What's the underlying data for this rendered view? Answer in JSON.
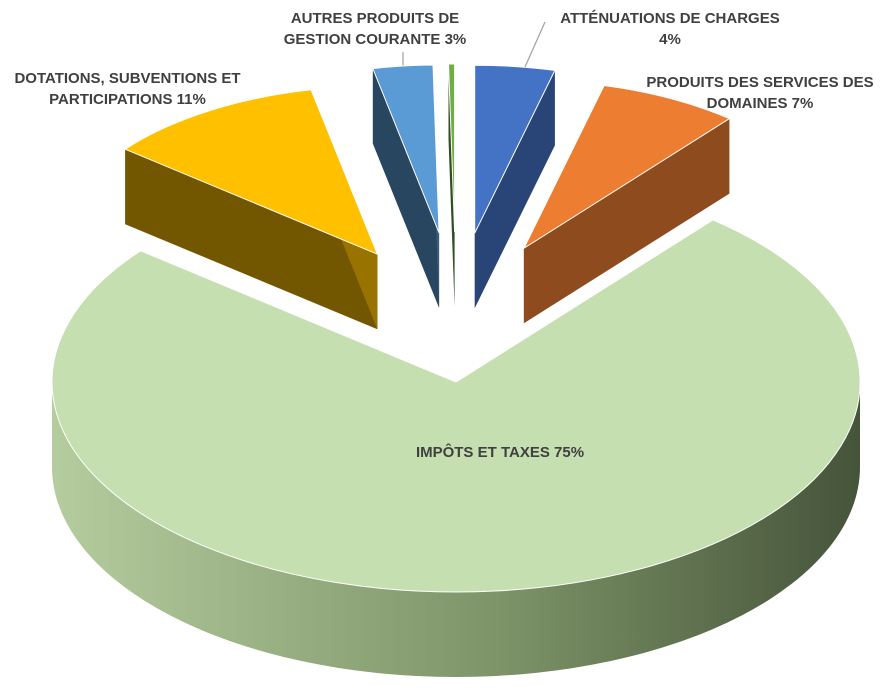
{
  "chart_data": {
    "type": "pie3d",
    "categories": [
      "ATTÉNUATIONS DE CHARGES",
      "PRODUITS DES SERVICES DES DOMAINES",
      "IMPÔTS ET TAXES",
      "DOTATIONS, SUBVENTIONS ET PARTICIPATIONS",
      "AUTRES PRODUITS DE GESTION COURANTE",
      null
    ],
    "values": [
      4,
      7,
      75,
      11,
      3,
      0.3
    ],
    "value_labels": [
      "4%",
      "7%",
      "75%",
      "11%",
      "3%",
      null
    ],
    "colors": [
      "#4472c4",
      "#ed7d31",
      "#c5dfb0",
      "#ffc000",
      "#5b9bd5",
      "#70ad47"
    ]
  }
}
